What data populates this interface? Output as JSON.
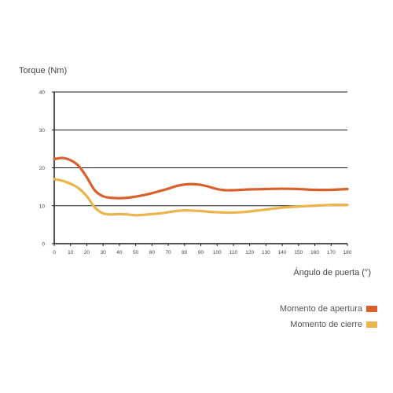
{
  "chart_data": {
    "type": "line",
    "ylabel": "Torque (Nm)",
    "xlabel": "Ángulo de puerta (°)",
    "xlim": [
      0,
      180
    ],
    "ylim": [
      0,
      40
    ],
    "x_ticks": [
      0,
      10,
      20,
      30,
      40,
      50,
      60,
      70,
      80,
      90,
      100,
      110,
      120,
      130,
      140,
      150,
      160,
      170,
      180
    ],
    "y_ticks": [
      0,
      10,
      20,
      30,
      40
    ],
    "grid": "horizontal",
    "legend_position": "bottom-right",
    "series": [
      {
        "name": "Momento de apertura",
        "color": "#d9602b",
        "x": [
          0,
          5,
          10,
          15,
          20,
          25,
          30,
          35,
          40,
          45,
          50,
          55,
          60,
          65,
          70,
          75,
          80,
          85,
          90,
          95,
          100,
          105,
          110,
          115,
          120,
          130,
          140,
          150,
          160,
          170,
          180
        ],
        "y": [
          22.3,
          22.6,
          22.0,
          20.5,
          17.5,
          14.0,
          12.5,
          12.1,
          12.0,
          12.1,
          12.4,
          12.8,
          13.3,
          13.9,
          14.5,
          15.2,
          15.6,
          15.7,
          15.5,
          15.0,
          14.4,
          14.1,
          14.1,
          14.2,
          14.3,
          14.4,
          14.5,
          14.4,
          14.2,
          14.2,
          14.4
        ]
      },
      {
        "name": "Momento de cierre",
        "color": "#eab54d",
        "x": [
          0,
          5,
          10,
          15,
          20,
          25,
          30,
          35,
          40,
          45,
          50,
          55,
          60,
          65,
          70,
          75,
          80,
          85,
          90,
          95,
          100,
          105,
          110,
          115,
          120,
          130,
          140,
          150,
          160,
          170,
          180
        ],
        "y": [
          17.0,
          16.6,
          15.8,
          14.6,
          12.5,
          9.5,
          8.0,
          7.7,
          7.8,
          7.7,
          7.5,
          7.6,
          7.8,
          8.0,
          8.3,
          8.6,
          8.8,
          8.7,
          8.6,
          8.4,
          8.3,
          8.2,
          8.2,
          8.3,
          8.5,
          9.0,
          9.5,
          9.8,
          10.0,
          10.2,
          10.2
        ]
      }
    ]
  }
}
